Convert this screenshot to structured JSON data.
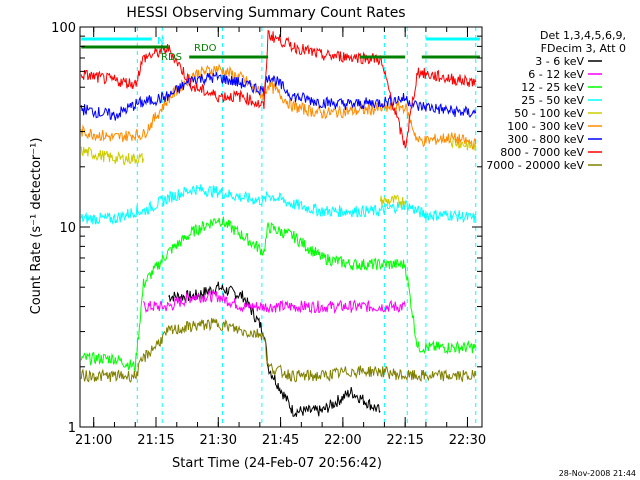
{
  "chart_data": {
    "type": "line",
    "title": "HESSI Observing Summary Count Rates",
    "xlabel": "Start Time (24-Feb-07 20:56:42)",
    "ylabel": "Count Rate (s⁻¹ detector⁻¹)",
    "y_scale": "log",
    "ylim": [
      1,
      100
    ],
    "y_ticks": [
      1,
      10,
      100
    ],
    "y_tick_labels": [
      "1",
      "10",
      "100"
    ],
    "xlim": [
      "20:56:42",
      "22:33:30"
    ],
    "x_ticks": [
      "21:00",
      "21:15",
      "21:30",
      "21:45",
      "22:00",
      "22:15",
      "22:30"
    ],
    "footer_date": "28-Nov-2008 21:44",
    "legend": {
      "header": [
        "Det 1,3,4,5,6,9,",
        "FDecim 3, Att 0"
      ],
      "placement": "right"
    },
    "flag_labels": [
      "N",
      "RDS",
      "RDO"
    ],
    "flags": [
      {
        "label": "N",
        "color": "#00ffff",
        "segments": [
          [
            "20:57:00",
            "21:14:00"
          ],
          [
            "22:20:00",
            "22:33:00"
          ]
        ]
      },
      {
        "label": "RDS",
        "color": "#008000",
        "segments": [
          [
            "20:57:00",
            "21:18:00"
          ]
        ]
      },
      {
        "label": "RDO",
        "color": "#008000",
        "segments": [
          [
            "21:23:00",
            "21:42:00"
          ],
          [
            "22:04:00",
            "22:15:00"
          ],
          [
            "22:19:00",
            "22:33:00"
          ]
        ]
      }
    ],
    "vertical_markers": [
      "21:10:30",
      "21:16:30",
      "21:31:00",
      "21:40:30",
      "22:10:00",
      "22:15:30",
      "22:20:00",
      "22:32:00"
    ],
    "x": [
      "20:57",
      "21:05",
      "21:10",
      "21:12",
      "21:18",
      "21:24",
      "21:30",
      "21:36",
      "21:41",
      "21:42",
      "21:48",
      "21:55",
      "22:02",
      "22:09",
      "22:15",
      "22:18",
      "22:20",
      "22:26",
      "22:32"
    ],
    "series": [
      {
        "name": "3 - 6 keV",
        "color": "#000000",
        "values": [
          null,
          null,
          null,
          null,
          4.5,
          4.5,
          5.0,
          4.5,
          3.0,
          2.0,
          1.2,
          1.2,
          1.5,
          1.2,
          null,
          null,
          null,
          null,
          null
        ]
      },
      {
        "name": "6 - 12 keV",
        "color": "#ff00ff",
        "values": [
          null,
          null,
          null,
          4.0,
          4.0,
          4.5,
          4.5,
          4.0,
          4.0,
          4.0,
          4.0,
          4.0,
          4.0,
          4.0,
          4.0,
          null,
          null,
          null,
          null
        ]
      },
      {
        "name": "12 - 25 keV",
        "color": "#00ff00",
        "values": [
          2.2,
          2.2,
          2.0,
          5.2,
          7.5,
          9.5,
          11.0,
          9.0,
          7.5,
          10.0,
          9.0,
          7.0,
          6.5,
          6.5,
          6.5,
          2.5,
          2.5,
          2.5,
          2.5
        ]
      },
      {
        "name": "25 - 50 keV",
        "color": "#00ffff",
        "values": [
          11.0,
          11.0,
          12.0,
          12.0,
          14.0,
          15.5,
          15.0,
          14.0,
          13.5,
          14.5,
          13.0,
          12.0,
          12.0,
          12.0,
          13.0,
          12.0,
          11.5,
          11.5,
          11.0
        ]
      },
      {
        "name": "50 - 100 keV",
        "color": "#cccc00",
        "values": [
          24.0,
          22.0,
          22.0,
          22.0,
          null,
          null,
          null,
          null,
          null,
          null,
          null,
          null,
          null,
          13.5,
          13.5,
          null,
          null,
          27.0,
          25.0
        ]
      },
      {
        "name": "100 - 300 keV",
        "color": "#ff8c00",
        "values": [
          30.0,
          28.0,
          29.0,
          29.0,
          44.0,
          58.0,
          62.0,
          55.0,
          45.0,
          52.0,
          40.0,
          37.0,
          38.0,
          39.0,
          40.0,
          27.0,
          27.0,
          28.0,
          26.0
        ]
      },
      {
        "name": "300 - 800 keV",
        "color": "#0000ff",
        "values": [
          39.0,
          36.0,
          41.0,
          42.0,
          45.0,
          55.0,
          56.0,
          52.0,
          48.0,
          58.0,
          45.0,
          42.0,
          41.0,
          42.0,
          44.0,
          40.0,
          40.0,
          38.0,
          37.0
        ]
      },
      {
        "name": "800 - 7000 keV",
        "color": "#ff0000",
        "values": [
          58.0,
          54.0,
          52.0,
          70.0,
          78.0,
          50.0,
          45.0,
          45.0,
          40.0,
          92.0,
          80.0,
          72.0,
          71.0,
          69.0,
          25.0,
          60.0,
          58.0,
          55.0,
          53.0
        ]
      },
      {
        "name": "7000 - 20000 keV",
        "color": "#808000",
        "values": [
          1.8,
          1.8,
          1.8,
          2.2,
          3.0,
          3.2,
          3.3,
          3.0,
          2.9,
          2.0,
          1.8,
          1.8,
          1.9,
          1.9,
          1.8,
          1.8,
          1.8,
          1.8,
          1.8
        ]
      }
    ]
  }
}
